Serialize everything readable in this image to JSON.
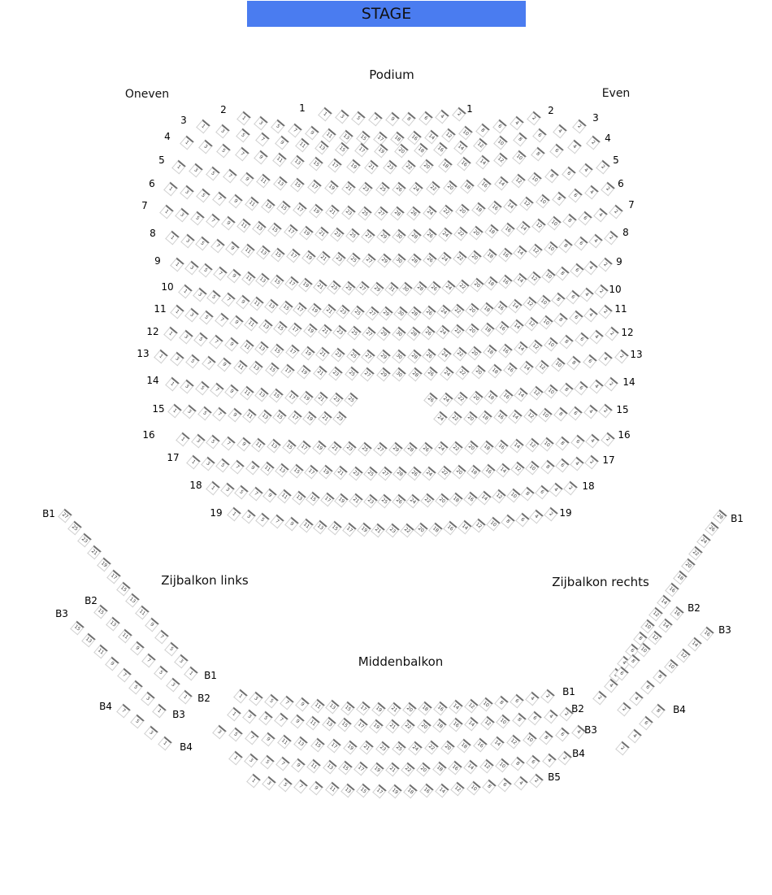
{
  "stage": {
    "label": "STAGE",
    "color": "#4a7cf0"
  },
  "sections": {
    "podium": "Podium",
    "oneven": "Oneven",
    "even": "Even",
    "zijbalkon_links": "Zijbalkon links",
    "zijbalkon_rechts": "Zijbalkon rechts",
    "middenbalkon": "Middenbalkon"
  },
  "podium_rows": [
    {
      "label": "1",
      "odd_max": 9,
      "even_max": 8
    },
    {
      "label": "2",
      "odd_max": 17,
      "even_max": 18
    },
    {
      "label": "3",
      "odd_max": 19,
      "even_max": 20
    },
    {
      "label": "4",
      "odd_max": 23,
      "even_max": 22
    },
    {
      "label": "5",
      "odd_max": 25,
      "even_max": 26
    },
    {
      "label": "6",
      "odd_max": 27,
      "even_max": 28
    },
    {
      "label": "7",
      "odd_max": 29,
      "even_max": 30
    },
    {
      "label": "8",
      "odd_max": 29,
      "even_max": 30
    },
    {
      "label": "9",
      "odd_max": 31,
      "even_max": 30
    },
    {
      "label": "10",
      "odd_max": 29,
      "even_max": 30
    },
    {
      "label": "11",
      "odd_max": 29,
      "even_max": 30
    },
    {
      "label": "12",
      "odd_max": 29,
      "even_max": 30
    },
    {
      "label": "13",
      "odd_max": 29,
      "even_max": 30
    },
    {
      "label": "14",
      "odd_max": 25,
      "even_max": 26
    },
    {
      "label": "15",
      "odd_max": 23,
      "even_max": 24
    },
    {
      "label": "16",
      "odd_max": 29,
      "even_max": 28
    },
    {
      "label": "17",
      "odd_max": 27,
      "even_max": 28
    },
    {
      "label": "18",
      "odd_max": 25,
      "even_max": 26
    },
    {
      "label": "19",
      "odd_max": 23,
      "even_max": 22
    }
  ],
  "zijbalkon_links_rows": [
    {
      "label": "B1",
      "seats_max": 27
    },
    {
      "label": "B2",
      "seats_max": 15
    },
    {
      "label": "B3",
      "seats_max": 15
    },
    {
      "label": "B4",
      "seats_max": 7
    }
  ],
  "zijbalkon_rechts_rows": [
    {
      "label": "B1",
      "seats_max": 28
    },
    {
      "label": "B2",
      "seats_max": 16
    },
    {
      "label": "B3",
      "seats_max": 16
    },
    {
      "label": "B4",
      "seats_max": 8
    }
  ],
  "middenbalkon_rows": [
    {
      "label": "B1",
      "odd_min": 1,
      "odd_max": 21,
      "even_min": 2,
      "even_max": 20
    },
    {
      "label": "B2",
      "odd_min": 1,
      "odd_max": 21,
      "even_min": 2,
      "even_max": 22
    },
    {
      "label": "B3",
      "odd_min": 3,
      "odd_max": 25,
      "even_min": 4,
      "even_max": 24
    },
    {
      "label": "B4",
      "odd_min": 1,
      "odd_max": 21,
      "even_min": 2,
      "even_max": 22
    },
    {
      "label": "B5",
      "odd_min": 1,
      "odd_max": 19,
      "even_min": 2,
      "even_max": 18
    }
  ]
}
